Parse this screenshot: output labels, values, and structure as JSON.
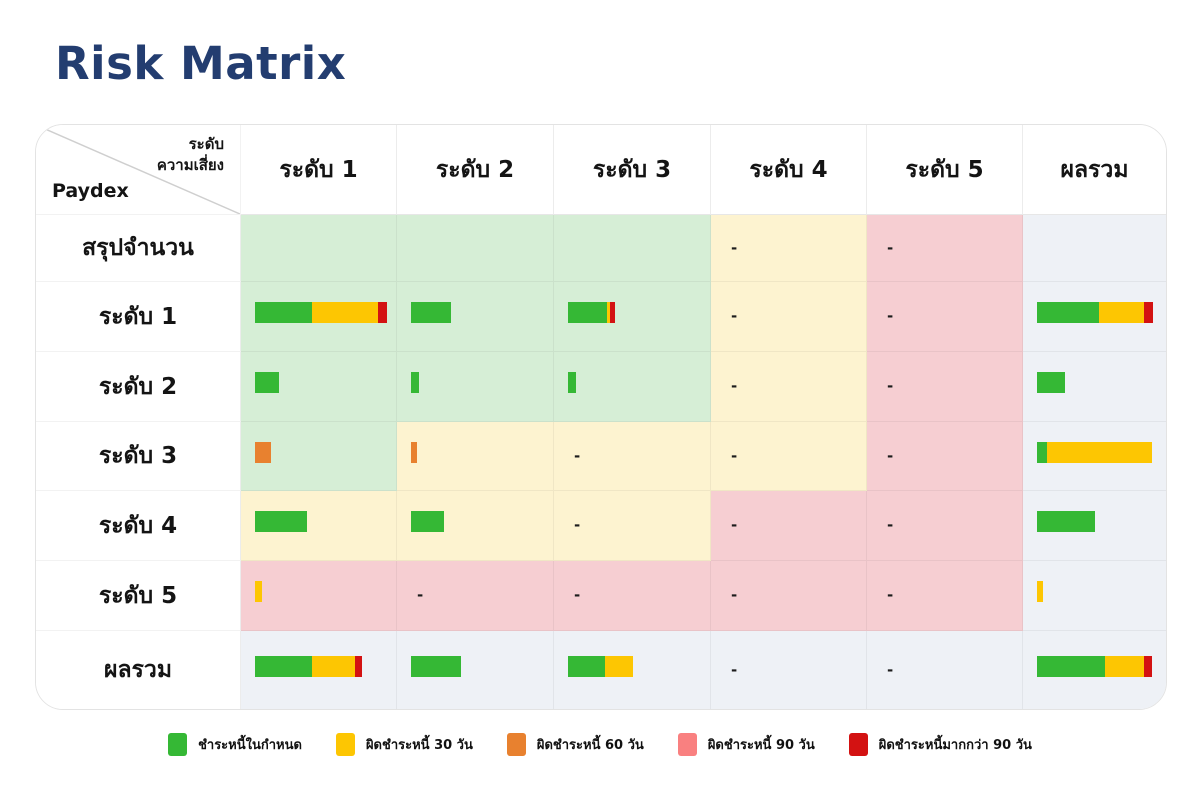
{
  "title": "Risk Matrix",
  "colors": {
    "title_navy": "#233d70",
    "bar_green": "#35b835",
    "bar_yellow": "#fdc602",
    "bar_orange": "#e8812f",
    "bar_red": "#d31212",
    "bar_pink": "#f98080",
    "bg_green": "#d6eed6",
    "bg_yellow": "#fdf3d0",
    "bg_pink": "#f6ced2",
    "bg_gray": "#eef1f6"
  },
  "chart_data": {
    "type": "heatmap",
    "title": "Risk Matrix",
    "corner": {
      "top_line1": "ระดับ",
      "top_line2": "ความเสี่ยง",
      "bottom": "Paydex"
    },
    "columns": [
      "ระดับ 1",
      "ระดับ 2",
      "ระดับ 3",
      "ระดับ 4",
      "ระดับ 5",
      "ผลรวม"
    ],
    "dash": "-",
    "legend_note": "cell zone = risk background color; bars = [segment color, width px as drawn]",
    "rows": [
      {
        "label": "สรุปจำนวน",
        "cells": [
          {
            "zone": "green",
            "bars": []
          },
          {
            "zone": "green",
            "bars": []
          },
          {
            "zone": "green",
            "bars": []
          },
          {
            "zone": "yellow",
            "dash": true
          },
          {
            "zone": "pink",
            "dash": true
          },
          {
            "zone": "gray",
            "bars": []
          }
        ]
      },
      {
        "label": "ระดับ 1",
        "cells": [
          {
            "zone": "green",
            "bars": [
              [
                "green",
                57
              ],
              [
                "yellow",
                66
              ],
              [
                "red",
                9
              ]
            ]
          },
          {
            "zone": "green",
            "bars": [
              [
                "green",
                40
              ]
            ]
          },
          {
            "zone": "green",
            "bars": [
              [
                "green",
                39
              ],
              [
                "yellow",
                3
              ],
              [
                "red",
                5
              ]
            ]
          },
          {
            "zone": "yellow",
            "dash": true
          },
          {
            "zone": "pink",
            "dash": true
          },
          {
            "zone": "gray",
            "bars": [
              [
                "green",
                62
              ],
              [
                "yellow",
                45
              ],
              [
                "red",
                9
              ]
            ]
          }
        ]
      },
      {
        "label": "ระดับ 2",
        "cells": [
          {
            "zone": "green",
            "bars": [
              [
                "green",
                24
              ]
            ]
          },
          {
            "zone": "green",
            "bars": [
              [
                "green",
                8
              ]
            ]
          },
          {
            "zone": "green",
            "bars": [
              [
                "green",
                8
              ]
            ]
          },
          {
            "zone": "yellow",
            "dash": true
          },
          {
            "zone": "pink",
            "dash": true
          },
          {
            "zone": "gray",
            "bars": [
              [
                "green",
                28
              ]
            ]
          }
        ]
      },
      {
        "label": "ระดับ 3",
        "cells": [
          {
            "zone": "green",
            "bars": [
              [
                "orange",
                16
              ]
            ]
          },
          {
            "zone": "yellow",
            "bars": [
              [
                "orange",
                6
              ]
            ]
          },
          {
            "zone": "yellow",
            "dash": true
          },
          {
            "zone": "yellow",
            "dash": true
          },
          {
            "zone": "pink",
            "dash": true
          },
          {
            "zone": "gray",
            "bars": [
              [
                "green",
                10
              ],
              [
                "yellow",
                105
              ]
            ]
          }
        ]
      },
      {
        "label": "ระดับ 4",
        "cells": [
          {
            "zone": "yellow",
            "bars": [
              [
                "green",
                52
              ]
            ]
          },
          {
            "zone": "yellow",
            "bars": [
              [
                "green",
                33
              ]
            ]
          },
          {
            "zone": "yellow",
            "dash": true
          },
          {
            "zone": "pink",
            "dash": true
          },
          {
            "zone": "pink",
            "dash": true
          },
          {
            "zone": "gray",
            "bars": [
              [
                "green",
                58
              ]
            ]
          }
        ]
      },
      {
        "label": "ระดับ 5",
        "cells": [
          {
            "zone": "pink",
            "bars": [
              [
                "yellow",
                7
              ]
            ]
          },
          {
            "zone": "pink",
            "dash": true
          },
          {
            "zone": "pink",
            "dash": true
          },
          {
            "zone": "pink",
            "dash": true
          },
          {
            "zone": "pink",
            "dash": true
          },
          {
            "zone": "gray",
            "bars": [
              [
                "yellow",
                6
              ]
            ]
          }
        ]
      },
      {
        "label": "ผลรวม",
        "cells": [
          {
            "zone": "gray",
            "bars": [
              [
                "green",
                57
              ],
              [
                "yellow",
                43
              ],
              [
                "red",
                7
              ]
            ]
          },
          {
            "zone": "gray",
            "bars": [
              [
                "green",
                50
              ]
            ]
          },
          {
            "zone": "gray",
            "bars": [
              [
                "green",
                37
              ],
              [
                "yellow",
                28
              ]
            ]
          },
          {
            "zone": "gray",
            "dash": true
          },
          {
            "zone": "gray",
            "dash": true
          },
          {
            "zone": "gray",
            "bars": [
              [
                "green",
                68
              ],
              [
                "yellow",
                39
              ],
              [
                "red",
                8
              ]
            ]
          }
        ]
      }
    ],
    "legend": [
      {
        "color_key": "bar_green",
        "label": "ชำระหนี้ในกำหนด"
      },
      {
        "color_key": "bar_yellow",
        "label": "ผิดชำระหนี้ 30 วัน"
      },
      {
        "color_key": "bar_orange",
        "label": "ผิดชำระหนี้ 60 วัน"
      },
      {
        "color_key": "bar_pink",
        "label": "ผิดชำระหนี้ 90 วัน"
      },
      {
        "color_key": "bar_red",
        "label": "ผิดชำระหนี้มากกว่า 90 วัน"
      }
    ]
  }
}
